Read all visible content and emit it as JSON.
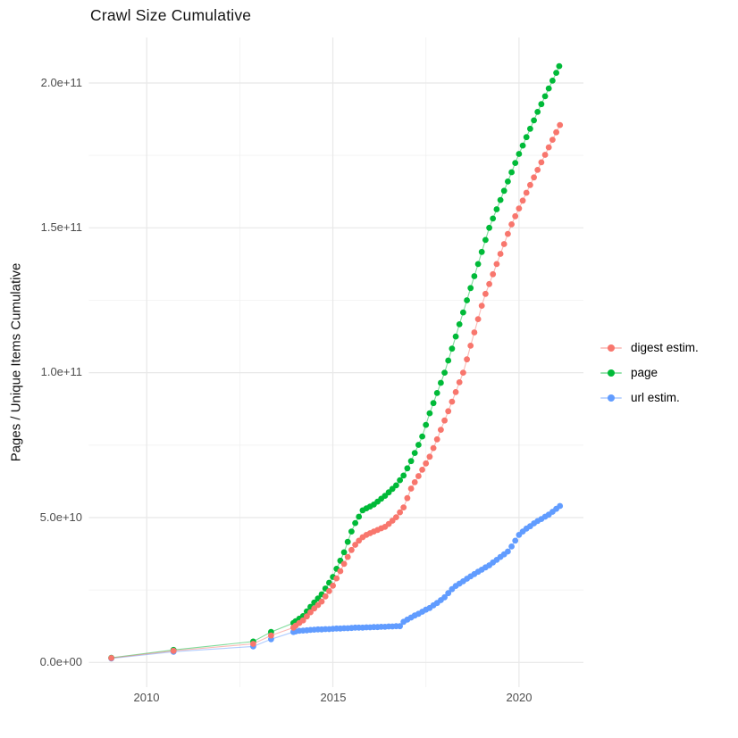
{
  "title": "Crawl Size Cumulative",
  "y_axis": {
    "label": "Pages / Unique Items Cumulative",
    "ticks": [
      {
        "value_billions": 0,
        "label": "0.0e+00"
      },
      {
        "value_billions": 50,
        "label": "5.0e+10"
      },
      {
        "value_billions": 100,
        "label": "1.0e+11"
      },
      {
        "value_billions": 150,
        "label": "1.5e+11"
      },
      {
        "value_billions": 200,
        "label": "2.0e+11"
      }
    ],
    "minor_billions": [
      25,
      75,
      125,
      175
    ]
  },
  "x_axis": {
    "ticks": [
      {
        "value_year": 2010,
        "label": "2010"
      },
      {
        "value_year": 2015,
        "label": "2015"
      },
      {
        "value_year": 2020,
        "label": "2020"
      }
    ],
    "minor_years": [
      2012.5,
      2017.5
    ]
  },
  "legend": {
    "items": [
      {
        "name": "digest estim.",
        "color": "#F8766D"
      },
      {
        "name": "page",
        "color": "#00BA38"
      },
      {
        "name": "url estim.",
        "color": "#619CFF"
      }
    ]
  },
  "colors": {
    "digest_estim": "#F8766D",
    "page": "#00BA38",
    "url_estim": "#619CFF",
    "grid_major": "#E8E8E8",
    "grid_minor": "#F0F0F0",
    "axis_text": "#4D4D4D"
  },
  "chart_data": {
    "type": "scatter",
    "note": "cumulative crawl size over time; x = decimal year, y = items in billions (1e9); values estimated from gridlines",
    "title": "Crawl Size Cumulative",
    "xlabel": "",
    "ylabel": "Pages / Unique Items Cumulative",
    "xlim": [
      2008.45,
      2021.72
    ],
    "ylim": [
      0,
      200000000000.0
    ],
    "grid": true,
    "legend_position": "right",
    "series": [
      {
        "name": "digest estim.",
        "color": "#F8766D",
        "points_year_billions": [
          [
            2009.05,
            1.5
          ],
          [
            2010.72,
            4.0
          ],
          [
            2012.86,
            6.4
          ],
          [
            2013.34,
            9.3
          ],
          [
            2013.94,
            12.0
          ],
          [
            2014.0,
            12.7
          ],
          [
            2014.1,
            13.6
          ],
          [
            2014.2,
            14.5
          ],
          [
            2014.3,
            15.9
          ],
          [
            2014.4,
            17.3
          ],
          [
            2014.5,
            18.6
          ],
          [
            2014.6,
            19.8
          ],
          [
            2014.7,
            21.0
          ],
          [
            2014.8,
            22.8
          ],
          [
            2014.9,
            24.6
          ],
          [
            2015.0,
            26.5
          ],
          [
            2015.1,
            29.0
          ],
          [
            2015.2,
            31.5
          ],
          [
            2015.3,
            34.0
          ],
          [
            2015.4,
            36.4
          ],
          [
            2015.5,
            38.8
          ],
          [
            2015.6,
            40.6
          ],
          [
            2015.7,
            42.0
          ],
          [
            2015.8,
            43.2
          ],
          [
            2015.9,
            44.0
          ],
          [
            2016.0,
            44.6
          ],
          [
            2016.1,
            45.2
          ],
          [
            2016.2,
            45.7
          ],
          [
            2016.3,
            46.3
          ],
          [
            2016.4,
            46.8
          ],
          [
            2016.5,
            47.8
          ],
          [
            2016.6,
            48.9
          ],
          [
            2016.7,
            50.1
          ],
          [
            2016.8,
            51.8
          ],
          [
            2016.9,
            53.5
          ],
          [
            2017.0,
            56.7
          ],
          [
            2017.1,
            60.0
          ],
          [
            2017.2,
            62.2
          ],
          [
            2017.3,
            64.3
          ],
          [
            2017.4,
            66.5
          ],
          [
            2017.5,
            68.7
          ],
          [
            2017.6,
            71.0
          ],
          [
            2017.7,
            74.0
          ],
          [
            2017.8,
            77.0
          ],
          [
            2017.9,
            80.3
          ],
          [
            2018.0,
            83.5
          ],
          [
            2018.1,
            86.7
          ],
          [
            2018.2,
            90.0
          ],
          [
            2018.3,
            93.3
          ],
          [
            2018.4,
            96.7
          ],
          [
            2018.5,
            100.0
          ],
          [
            2018.6,
            104.6
          ],
          [
            2018.7,
            109.3
          ],
          [
            2018.8,
            113.9
          ],
          [
            2018.9,
            118.5
          ],
          [
            2019.0,
            123.1
          ],
          [
            2019.1,
            127.2
          ],
          [
            2019.2,
            130.6
          ],
          [
            2019.3,
            134.0
          ],
          [
            2019.4,
            137.5
          ],
          [
            2019.5,
            141.0
          ],
          [
            2019.6,
            144.4
          ],
          [
            2019.7,
            147.9
          ],
          [
            2019.8,
            151.2
          ],
          [
            2019.9,
            154.0
          ],
          [
            2020.0,
            156.7
          ],
          [
            2020.1,
            159.4
          ],
          [
            2020.2,
            162.1
          ],
          [
            2020.3,
            164.8
          ],
          [
            2020.4,
            167.4
          ],
          [
            2020.5,
            170.0
          ],
          [
            2020.6,
            172.6
          ],
          [
            2020.7,
            175.2
          ],
          [
            2020.8,
            177.8
          ],
          [
            2020.9,
            180.4
          ],
          [
            2021.0,
            183.0
          ],
          [
            2021.1,
            185.5
          ]
        ]
      },
      {
        "name": "page",
        "color": "#00BA38",
        "points_year_billions": [
          [
            2009.05,
            1.6
          ],
          [
            2010.72,
            4.3
          ],
          [
            2012.86,
            7.2
          ],
          [
            2013.34,
            10.5
          ],
          [
            2013.94,
            13.6
          ],
          [
            2014.0,
            14.2
          ],
          [
            2014.1,
            15.1
          ],
          [
            2014.2,
            16.0
          ],
          [
            2014.3,
            17.6
          ],
          [
            2014.4,
            19.2
          ],
          [
            2014.5,
            20.7
          ],
          [
            2014.6,
            22.1
          ],
          [
            2014.7,
            23.5
          ],
          [
            2014.8,
            25.5
          ],
          [
            2014.9,
            27.5
          ],
          [
            2015.0,
            29.5
          ],
          [
            2015.1,
            32.3
          ],
          [
            2015.2,
            35.1
          ],
          [
            2015.3,
            38.0
          ],
          [
            2015.4,
            41.6
          ],
          [
            2015.5,
            45.2
          ],
          [
            2015.6,
            48.1
          ],
          [
            2015.7,
            50.3
          ],
          [
            2015.8,
            52.5
          ],
          [
            2015.9,
            53.2
          ],
          [
            2016.0,
            53.8
          ],
          [
            2016.1,
            54.5
          ],
          [
            2016.2,
            55.5
          ],
          [
            2016.3,
            56.5
          ],
          [
            2016.4,
            57.5
          ],
          [
            2016.5,
            58.7
          ],
          [
            2016.6,
            59.9
          ],
          [
            2016.7,
            61.1
          ],
          [
            2016.8,
            62.9
          ],
          [
            2016.9,
            64.5
          ],
          [
            2017.0,
            67.0
          ],
          [
            2017.1,
            69.5
          ],
          [
            2017.2,
            72.3
          ],
          [
            2017.3,
            75.1
          ],
          [
            2017.4,
            78.0
          ],
          [
            2017.5,
            82.0
          ],
          [
            2017.6,
            86.0
          ],
          [
            2017.7,
            89.5
          ],
          [
            2017.8,
            93.0
          ],
          [
            2017.9,
            96.5
          ],
          [
            2018.0,
            100.0
          ],
          [
            2018.1,
            104.2
          ],
          [
            2018.2,
            108.3
          ],
          [
            2018.3,
            112.5
          ],
          [
            2018.4,
            116.7
          ],
          [
            2018.5,
            120.8
          ],
          [
            2018.6,
            125.0
          ],
          [
            2018.7,
            129.2
          ],
          [
            2018.8,
            133.3
          ],
          [
            2018.9,
            137.5
          ],
          [
            2019.0,
            141.7
          ],
          [
            2019.1,
            145.8
          ],
          [
            2019.2,
            150.0
          ],
          [
            2019.3,
            153.2
          ],
          [
            2019.4,
            156.4
          ],
          [
            2019.5,
            159.6
          ],
          [
            2019.6,
            162.8
          ],
          [
            2019.7,
            166.0
          ],
          [
            2019.8,
            169.2
          ],
          [
            2019.9,
            172.4
          ],
          [
            2020.0,
            175.5
          ],
          [
            2020.1,
            178.4
          ],
          [
            2020.2,
            181.3
          ],
          [
            2020.3,
            184.2
          ],
          [
            2020.4,
            187.1
          ],
          [
            2020.5,
            190.0
          ],
          [
            2020.6,
            192.7
          ],
          [
            2020.7,
            195.4
          ],
          [
            2020.8,
            198.1
          ],
          [
            2020.9,
            200.8
          ],
          [
            2021.0,
            203.5
          ],
          [
            2021.08,
            205.8
          ]
        ]
      },
      {
        "name": "url estim.",
        "color": "#619CFF",
        "points_year_billions": [
          [
            2009.05,
            1.4
          ],
          [
            2010.72,
            3.7
          ],
          [
            2012.86,
            5.5
          ],
          [
            2013.34,
            8.0
          ],
          [
            2013.94,
            10.5
          ],
          [
            2014.0,
            10.7
          ],
          [
            2014.1,
            10.9
          ],
          [
            2014.2,
            11.0
          ],
          [
            2014.3,
            11.1
          ],
          [
            2014.4,
            11.2
          ],
          [
            2014.5,
            11.3
          ],
          [
            2014.6,
            11.4
          ],
          [
            2014.7,
            11.4
          ],
          [
            2014.8,
            11.5
          ],
          [
            2014.9,
            11.5
          ],
          [
            2015.0,
            11.6
          ],
          [
            2015.1,
            11.7
          ],
          [
            2015.2,
            11.7
          ],
          [
            2015.3,
            11.8
          ],
          [
            2015.4,
            11.8
          ],
          [
            2015.5,
            11.9
          ],
          [
            2015.6,
            12.0
          ],
          [
            2015.7,
            12.0
          ],
          [
            2015.8,
            12.0
          ],
          [
            2015.9,
            12.1
          ],
          [
            2016.0,
            12.1
          ],
          [
            2016.1,
            12.2
          ],
          [
            2016.2,
            12.2
          ],
          [
            2016.3,
            12.3
          ],
          [
            2016.4,
            12.3
          ],
          [
            2016.5,
            12.4
          ],
          [
            2016.6,
            12.4
          ],
          [
            2016.7,
            12.5
          ],
          [
            2016.8,
            12.5
          ],
          [
            2016.9,
            14.0
          ],
          [
            2017.0,
            14.8
          ],
          [
            2017.1,
            15.5
          ],
          [
            2017.2,
            16.2
          ],
          [
            2017.3,
            16.8
          ],
          [
            2017.4,
            17.5
          ],
          [
            2017.5,
            18.2
          ],
          [
            2017.6,
            18.8
          ],
          [
            2017.7,
            19.7
          ],
          [
            2017.8,
            20.5
          ],
          [
            2017.9,
            21.5
          ],
          [
            2018.0,
            22.5
          ],
          [
            2018.1,
            23.9
          ],
          [
            2018.2,
            25.3
          ],
          [
            2018.3,
            26.4
          ],
          [
            2018.4,
            27.2
          ],
          [
            2018.5,
            28.0
          ],
          [
            2018.6,
            28.9
          ],
          [
            2018.7,
            29.7
          ],
          [
            2018.8,
            30.5
          ],
          [
            2018.9,
            31.3
          ],
          [
            2019.0,
            32.0
          ],
          [
            2019.1,
            32.8
          ],
          [
            2019.2,
            33.5
          ],
          [
            2019.3,
            34.5
          ],
          [
            2019.4,
            35.4
          ],
          [
            2019.5,
            36.4
          ],
          [
            2019.6,
            37.3
          ],
          [
            2019.7,
            38.3
          ],
          [
            2019.8,
            40.0
          ],
          [
            2019.9,
            42.0
          ],
          [
            2020.0,
            44.0
          ],
          [
            2020.1,
            45.2
          ],
          [
            2020.2,
            46.2
          ],
          [
            2020.3,
            47.0
          ],
          [
            2020.4,
            48.0
          ],
          [
            2020.5,
            48.8
          ],
          [
            2020.6,
            49.5
          ],
          [
            2020.7,
            50.3
          ],
          [
            2020.8,
            51.0
          ],
          [
            2020.9,
            52.0
          ],
          [
            2021.0,
            53.0
          ],
          [
            2021.1,
            54.0
          ]
        ]
      }
    ]
  }
}
